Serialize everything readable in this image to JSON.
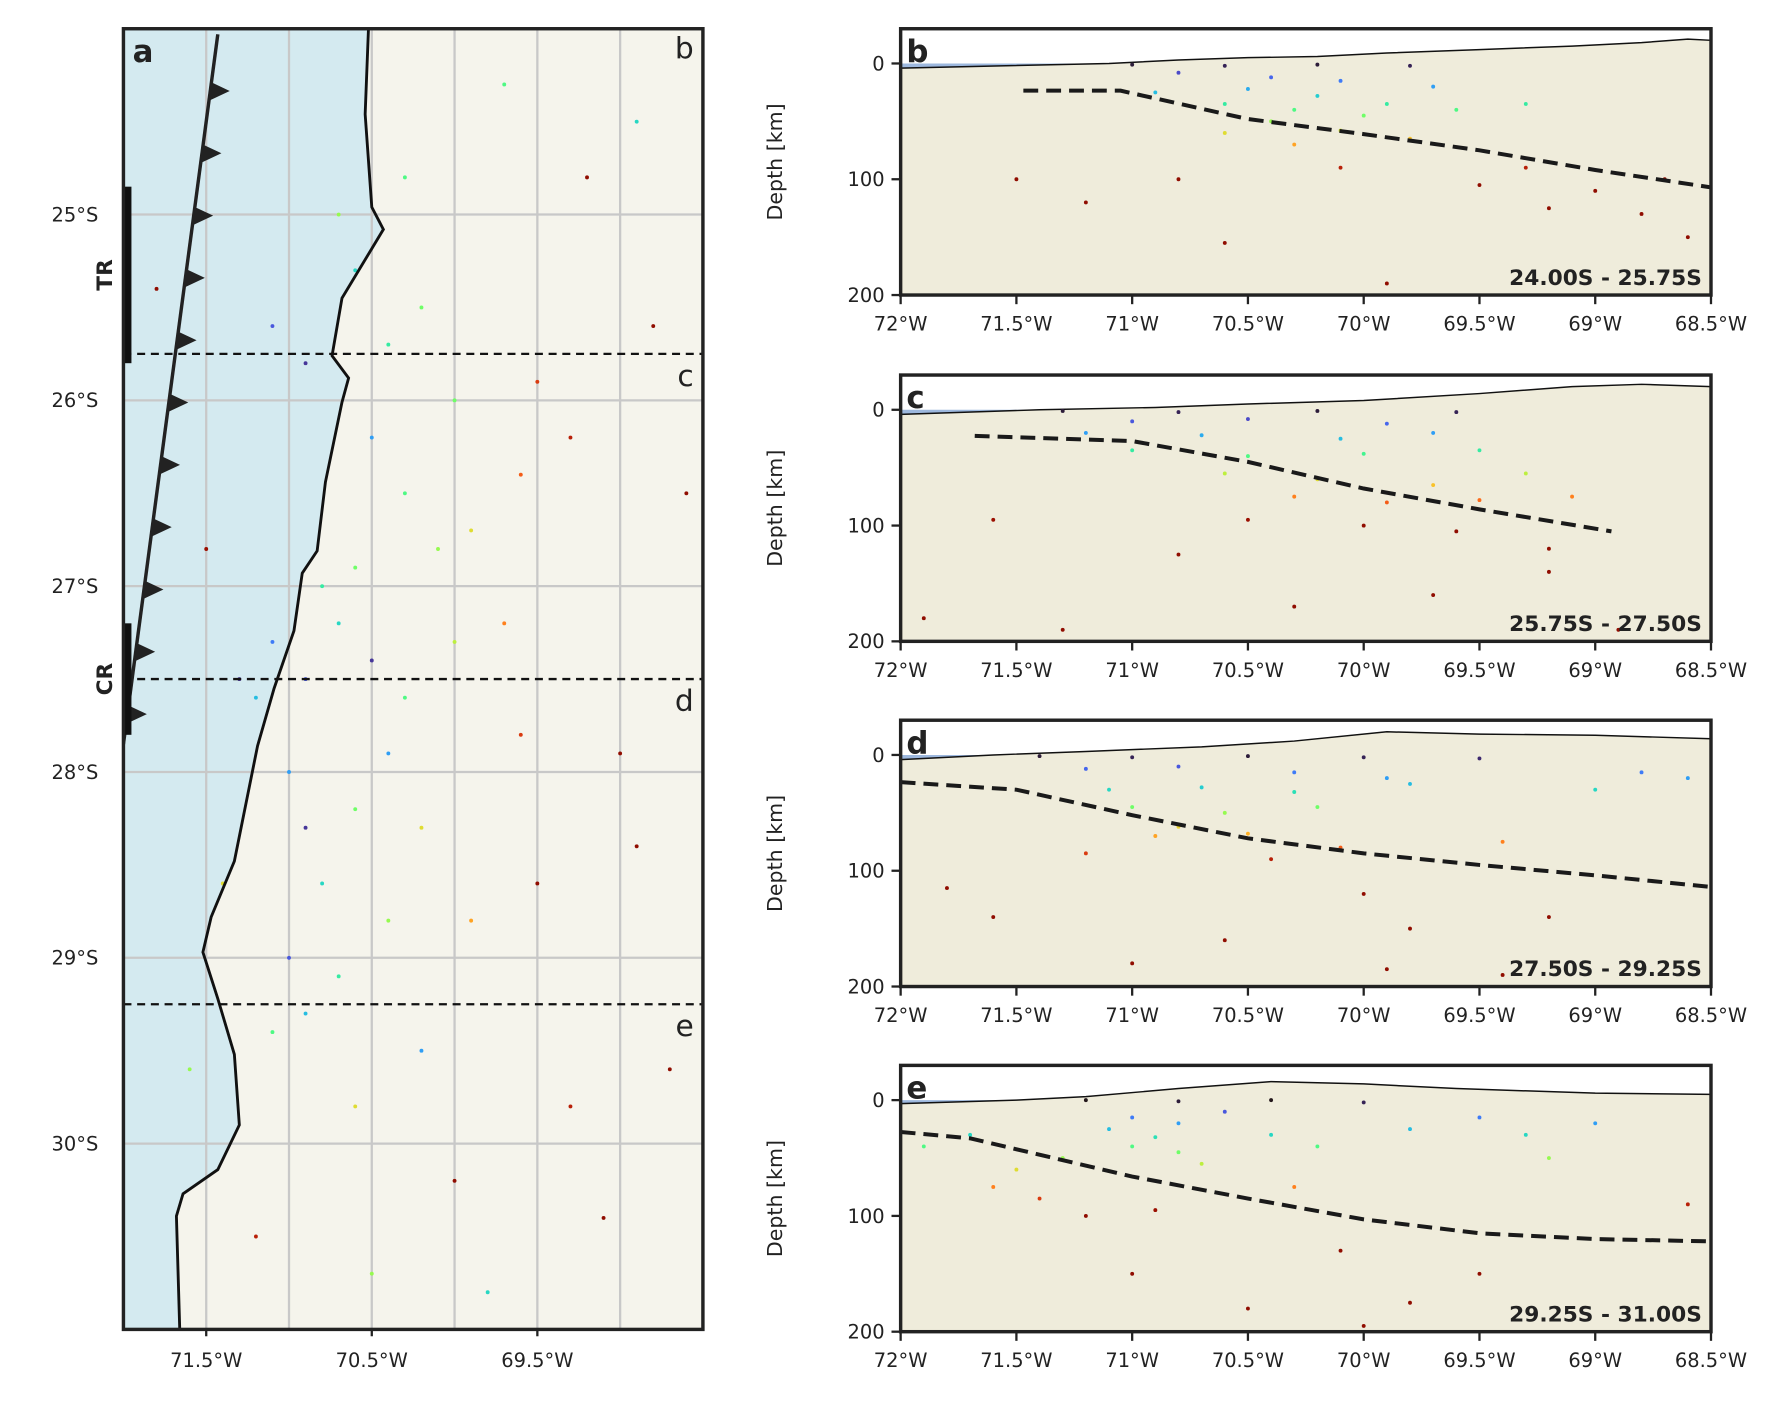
{
  "chart_data": [
    {
      "type": "map",
      "panel_label": "a",
      "xlim": [
        -72,
        -68.5
      ],
      "ylim": [
        -31,
        -24
      ],
      "xticks": [
        {
          "value": -71.5,
          "label": "71.5°W"
        },
        {
          "value": -70.5,
          "label": "70.5°W"
        },
        {
          "value": -69.5,
          "label": "69.5°W"
        }
      ],
      "xgrid": [
        -71.5,
        -71,
        -70.5,
        -70,
        -69.5,
        -69
      ],
      "yticks": [
        {
          "value": -25,
          "label": "25°S"
        },
        {
          "value": -26,
          "label": "26°S"
        },
        {
          "value": -27,
          "label": "27°S"
        },
        {
          "value": -28,
          "label": "28°S"
        },
        {
          "value": -29,
          "label": "29°S"
        },
        {
          "value": -30,
          "label": "30°S"
        }
      ],
      "grid": true,
      "colormap": "turbo",
      "color_range": [
        0,
        100
      ],
      "land_color": "#f5f4ec",
      "ocean_color": "#d4eaf0",
      "section_lines": [
        -25.75,
        -27.5,
        -29.25
      ],
      "section_labels": [
        "b",
        "c",
        "d",
        "e"
      ],
      "zones": [
        {
          "label": "TR",
          "range": [
            -24.85,
            -25.8
          ]
        },
        {
          "label": "CR",
          "range": [
            -27.2,
            -27.8
          ]
        }
      ],
      "coastline": {
        "x": [
          -70.52,
          -70.54,
          -70.5,
          -70.43,
          -70.68,
          -70.74,
          -70.64,
          -70.68,
          -70.78,
          -70.83,
          -70.92,
          -70.97,
          -71.09,
          -71.19,
          -71.26,
          -71.33,
          -71.47,
          -71.52,
          -71.43,
          -71.33,
          -71.3,
          -71.43,
          -71.64,
          -71.68,
          -71.66
        ],
        "y": [
          -24,
          -24.46,
          -24.96,
          -25.08,
          -25.45,
          -25.76,
          -25.88,
          -26.01,
          -26.44,
          -26.81,
          -26.93,
          -27.24,
          -27.55,
          -27.86,
          -28.17,
          -28.48,
          -28.78,
          -28.97,
          -29.22,
          -29.52,
          -29.9,
          -30.14,
          -30.27,
          -30.39,
          -31
        ]
      },
      "trench": {
        "x": [
          -71.43,
          -72.0
        ],
        "y": [
          -24.03,
          -27.85
        ]
      },
      "x": [
        -71.1,
        -70.9,
        -70.6,
        -70.4,
        -70.2,
        -70.5,
        -70.3,
        -70.1,
        -69.9,
        -69.7,
        -69.6,
        -69.5,
        -69.3,
        -71.3,
        -71.1,
        -71.2,
        -70.9,
        -70.7,
        -70.5,
        -70.3,
        -70.0,
        -71.0,
        -70.9,
        -70.8,
        -70.6,
        -70.4,
        -71.0,
        -70.9,
        -71.1,
        -70.7,
        -70.8,
        -70.6,
        -70.4,
        -70.2,
        -69.9,
        -69.5,
        -69.0,
        -68.8,
        -69.2,
        -68.9,
        -69.7,
        -68.6,
        -69.3,
        -70.0,
        -70.5,
        -71.2,
        -69.8,
        -68.7,
        -71.6,
        -71.4,
        -70.2,
        -69.6,
        -70.0,
        -70.7,
        -70.3,
        -71.8,
        -71.5,
        -68.9,
        -69.1,
        -70.6
      ],
      "y": [
        -25.6,
        -25.8,
        -25.3,
        -25.7,
        -25.5,
        -26.2,
        -26.5,
        -26.8,
        -26.7,
        -27.2,
        -26.4,
        -25.9,
        -26.2,
        -27.5,
        -27.3,
        -27.6,
        -27.5,
        -27.2,
        -27.4,
        -27.6,
        -27.3,
        -28.0,
        -28.3,
        -28.6,
        -28.2,
        -28.8,
        -29.0,
        -29.3,
        -29.4,
        -29.1,
        -27.0,
        -26.9,
        -27.9,
        -28.3,
        -28.8,
        -28.6,
        -27.9,
        -25.6,
        -24.8,
        -24.5,
        -24.3,
        -26.5,
        -29.8,
        -30.2,
        -30.7,
        -30.5,
        -30.8,
        -29.6,
        -29.6,
        -28.6,
        -29.5,
        -27.8,
        -26.0,
        -25.0,
        -24.8,
        -25.4,
        -26.8,
        -28.4,
        -30.4,
        -29.8
      ],
      "depth": [
        10,
        5,
        30,
        35,
        45,
        20,
        40,
        50,
        60,
        75,
        80,
        85,
        90,
        5,
        15,
        25,
        10,
        30,
        5,
        40,
        55,
        20,
        5,
        30,
        45,
        50,
        10,
        25,
        40,
        35,
        35,
        45,
        20,
        60,
        70,
        100,
        110,
        150,
        120,
        30,
        40,
        150,
        90,
        100,
        50,
        90,
        30,
        130,
        50,
        60,
        20,
        85,
        45,
        50,
        40,
        110,
        95,
        120,
        130,
        60
      ]
    },
    {
      "type": "section",
      "panel_label": "b",
      "range_label": "24.00S - 25.75S",
      "ylabel": "Depth [km]",
      "xlim": [
        -72,
        -68.5
      ],
      "ylim": [
        200,
        -30
      ],
      "xticks": [
        {
          "value": -72,
          "label": "72°W"
        },
        {
          "value": -71.5,
          "label": "71.5°W"
        },
        {
          "value": -71,
          "label": "71°W"
        },
        {
          "value": -70.5,
          "label": "70.5°W"
        },
        {
          "value": -70,
          "label": "70°W"
        },
        {
          "value": -69.5,
          "label": "69.5°W"
        },
        {
          "value": -69,
          "label": "69°W"
        },
        {
          "value": -68.5,
          "label": "68.5°W"
        }
      ],
      "yticks": [
        0,
        100,
        200
      ],
      "colormap": "turbo",
      "color_range": [
        0,
        100
      ],
      "background": "#efecdb",
      "ocean_color": "#9db8de",
      "topography": {
        "x": [
          -72,
          -71.1,
          -70.8,
          -70.5,
          -70.2,
          -69.9,
          -69.5,
          -69.1,
          -68.8,
          -68.6,
          -68.5
        ],
        "y": [
          4,
          0,
          -3,
          -5,
          -6,
          -9,
          -12,
          -15,
          -18,
          -21,
          -20
        ]
      },
      "slab": {
        "x": [
          -71.47,
          -71.05,
          -70.5,
          -70,
          -69.5,
          -69,
          -68.5
        ],
        "y": [
          23.5,
          23.5,
          48,
          61,
          75,
          92,
          107
        ]
      },
      "x": [
        -71.0,
        -70.6,
        -70.2,
        -69.8,
        -70.8,
        -70.4,
        -70.1,
        -70.5,
        -70.2,
        -69.9,
        -70.6,
        -70.3,
        -70.0,
        -70.4,
        -70.1,
        -70.6,
        -69.8,
        -70.3,
        -69.6,
        -69.3,
        -69.0,
        -68.8,
        -69.2,
        -68.7,
        -69.5,
        -70.8,
        -71.5,
        -71.2,
        -70.6,
        -69.9,
        -68.6,
        -69.7,
        -70.9,
        -69.3,
        -70.1
      ],
      "y": [
        1,
        2,
        1,
        2,
        8,
        12,
        15,
        22,
        28,
        35,
        35,
        40,
        45,
        50,
        58,
        60,
        65,
        70,
        40,
        90,
        110,
        130,
        125,
        100,
        105,
        100,
        100,
        120,
        155,
        190,
        150,
        20,
        25,
        35,
        90
      ]
    },
    {
      "type": "section",
      "panel_label": "c",
      "range_label": "25.75S - 27.50S",
      "ylabel": "Depth [km]",
      "xlim": [
        -72,
        -68.5
      ],
      "ylim": [
        200,
        -30
      ],
      "xticks": [
        {
          "value": -72,
          "label": "72°W"
        },
        {
          "value": -71.5,
          "label": "71.5°W"
        },
        {
          "value": -71,
          "label": "71°W"
        },
        {
          "value": -70.5,
          "label": "70.5°W"
        },
        {
          "value": -70,
          "label": "70°W"
        },
        {
          "value": -69.5,
          "label": "69.5°W"
        },
        {
          "value": -69,
          "label": "69°W"
        },
        {
          "value": -68.5,
          "label": "68.5°W"
        }
      ],
      "yticks": [
        0,
        100,
        200
      ],
      "colormap": "turbo",
      "color_range": [
        0,
        100
      ],
      "background": "#efecdb",
      "ocean_color": "#9db8de",
      "topography": {
        "x": [
          -72,
          -71.4,
          -70.9,
          -70.5,
          -70.0,
          -69.5,
          -69.1,
          -68.8,
          -68.5
        ],
        "y": [
          4,
          0,
          -2,
          -5,
          -8,
          -14,
          -20,
          -22,
          -20
        ]
      },
      "slab": {
        "x": [
          -71.68,
          -71,
          -70.5,
          -70,
          -69.5,
          -68.93
        ],
        "y": [
          22.5,
          27,
          45,
          68,
          86,
          105
        ]
      },
      "x": [
        -71.3,
        -70.8,
        -70.2,
        -69.6,
        -71.0,
        -70.5,
        -69.9,
        -71.2,
        -70.7,
        -70.1,
        -69.7,
        -71.0,
        -70.5,
        -70.0,
        -69.5,
        -70.6,
        -70.2,
        -69.7,
        -69.3,
        -70.3,
        -69.9,
        -69.5,
        -69.1,
        -70.5,
        -70.0,
        -69.6,
        -69.2,
        -70.8,
        -71.6,
        -71.9,
        -70.3,
        -69.7,
        -69.2,
        -68.9,
        -71.3
      ],
      "y": [
        1,
        2,
        1,
        2,
        10,
        8,
        12,
        20,
        22,
        25,
        20,
        35,
        40,
        38,
        35,
        55,
        60,
        65,
        55,
        75,
        80,
        78,
        75,
        95,
        100,
        105,
        120,
        125,
        95,
        180,
        170,
        160,
        140,
        190,
        190
      ]
    },
    {
      "type": "section",
      "panel_label": "d",
      "range_label": "27.50S - 29.25S",
      "ylabel": "Depth [km]",
      "xlim": [
        -72,
        -68.5
      ],
      "ylim": [
        200,
        -30
      ],
      "xticks": [
        {
          "value": -72,
          "label": "72°W"
        },
        {
          "value": -71.5,
          "label": "71.5°W"
        },
        {
          "value": -71,
          "label": "71°W"
        },
        {
          "value": -70.5,
          "label": "70.5°W"
        },
        {
          "value": -70,
          "label": "70°W"
        },
        {
          "value": -69.5,
          "label": "69.5°W"
        },
        {
          "value": -69,
          "label": "69°W"
        },
        {
          "value": -68.5,
          "label": "68.5°W"
        }
      ],
      "yticks": [
        0,
        100,
        200
      ],
      "colormap": "turbo",
      "color_range": [
        0,
        100
      ],
      "background": "#efecdb",
      "ocean_color": "#9db8de",
      "topography": {
        "x": [
          -72,
          -71.6,
          -71.2,
          -70.7,
          -70.3,
          -69.9,
          -69.5,
          -69.0,
          -68.5
        ],
        "y": [
          4,
          0,
          -3,
          -7,
          -12,
          -20,
          -18,
          -17,
          -14
        ]
      },
      "slab": {
        "x": [
          -72,
          -71.5,
          -71,
          -70.5,
          -70,
          -69.5,
          -69,
          -68.5
        ],
        "y": [
          23.5,
          30,
          52,
          72,
          85,
          95,
          104,
          114
        ]
      },
      "x": [
        -71.4,
        -71.0,
        -70.5,
        -70.0,
        -69.5,
        -71.2,
        -70.8,
        -70.3,
        -69.9,
        -71.1,
        -70.7,
        -70.3,
        -69.8,
        -71.0,
        -70.6,
        -70.2,
        -70.8,
        -70.5,
        -70.9,
        -70.1,
        -69.4,
        -69.0,
        -68.8,
        -68.6,
        -70.4,
        -71.2,
        -71.8,
        -71.6,
        -70.6,
        -69.9,
        -69.4,
        -70.0,
        -69.2,
        -71.0,
        -69.8
      ],
      "y": [
        1,
        2,
        1,
        2,
        3,
        12,
        10,
        15,
        20,
        30,
        28,
        32,
        25,
        45,
        50,
        45,
        62,
        68,
        70,
        80,
        75,
        30,
        15,
        20,
        90,
        85,
        115,
        140,
        160,
        185,
        190,
        120,
        140,
        180,
        150
      ]
    },
    {
      "type": "section",
      "panel_label": "e",
      "range_label": "29.25S - 31.00S",
      "ylabel": "Depth [km]",
      "xlim": [
        -72,
        -68.5
      ],
      "ylim": [
        200,
        -30
      ],
      "xticks": [
        {
          "value": -72,
          "label": "72°W"
        },
        {
          "value": -71.5,
          "label": "71.5°W"
        },
        {
          "value": -71,
          "label": "71°W"
        },
        {
          "value": -70.5,
          "label": "70.5°W"
        },
        {
          "value": -70,
          "label": "70°W"
        },
        {
          "value": -69.5,
          "label": "69.5°W"
        },
        {
          "value": -69,
          "label": "69°W"
        },
        {
          "value": -68.5,
          "label": "68.5°W"
        }
      ],
      "yticks": [
        0,
        100,
        200
      ],
      "colormap": "turbo",
      "color_range": [
        0,
        100
      ],
      "background": "#efecdb",
      "ocean_color": "#9db8de",
      "topography": {
        "x": [
          -72,
          -71.5,
          -71.2,
          -70.8,
          -70.4,
          -70.0,
          -69.6,
          -69.0,
          -68.5
        ],
        "y": [
          3,
          0,
          -3,
          -10,
          -16,
          -14,
          -10,
          -6,
          -5
        ]
      },
      "slab": {
        "x": [
          -72,
          -71.7,
          -71,
          -70.5,
          -70,
          -69.5,
          -69,
          -68.5
        ],
        "y": [
          27.5,
          33,
          66,
          85,
          103,
          115,
          120,
          122
        ]
      },
      "x": [
        -71.2,
        -70.8,
        -70.4,
        -70.0,
        -71.0,
        -70.8,
        -71.1,
        -70.9,
        -71.0,
        -70.8,
        -70.6,
        -70.4,
        -70.2,
        -69.8,
        -69.5,
        -69.3,
        -71.3,
        -71.5,
        -71.6,
        -71.4,
        -71.2,
        -70.9,
        -71.0,
        -70.5,
        -70.1,
        -69.8,
        -69.5,
        -68.6,
        -71.9,
        -70.3,
        -70.7,
        -69.2,
        -71.7,
        -70.0,
        -69.0
      ],
      "y": [
        0,
        1,
        0,
        2,
        15,
        20,
        25,
        32,
        40,
        45,
        10,
        30,
        40,
        25,
        15,
        30,
        50,
        60,
        75,
        85,
        100,
        95,
        150,
        180,
        130,
        175,
        150,
        90,
        40,
        75,
        55,
        50,
        30,
        195,
        20
      ]
    }
  ]
}
